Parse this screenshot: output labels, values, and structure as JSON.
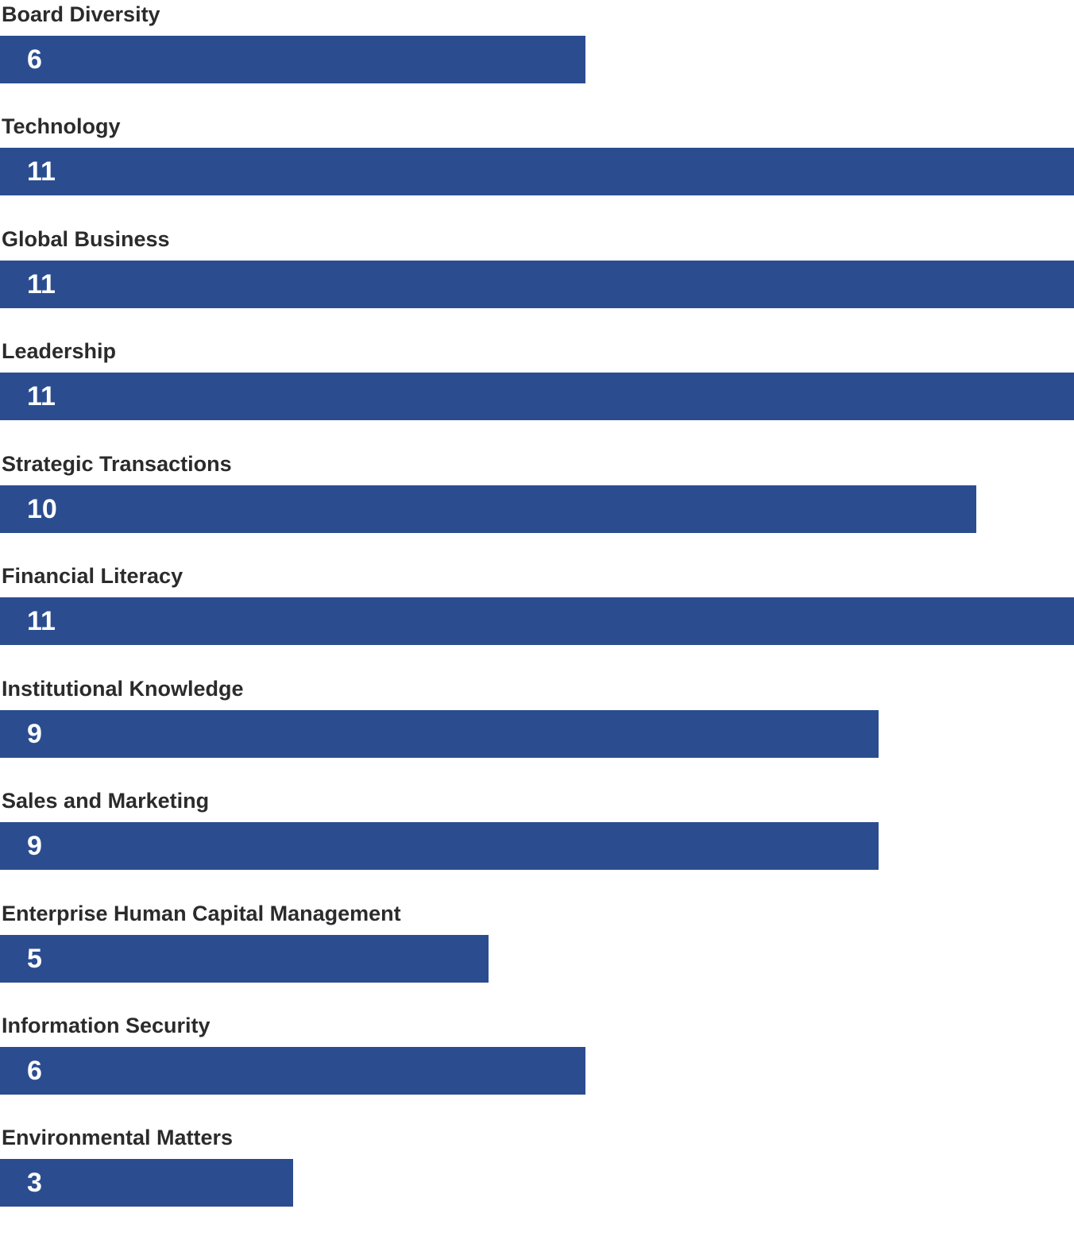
{
  "chart_data": {
    "type": "bar",
    "orientation": "horizontal",
    "categories": [
      "Board Diversity",
      "Technology",
      "Global Business",
      "Leadership",
      "Strategic Transactions",
      "Financial Literacy",
      "Institutional Knowledge",
      "Sales and Marketing",
      "Enterprise Human Capital Management",
      "Information Security",
      "Environmental Matters"
    ],
    "values": [
      6,
      11,
      11,
      11,
      10,
      11,
      9,
      9,
      5,
      6,
      3
    ],
    "xlim": [
      0,
      11
    ],
    "grid": false,
    "legend": false,
    "value_labels_inside_bars": true,
    "colors": {
      "bar": "#2b4d90",
      "category_label": "#2b2b2b",
      "value_label": "#ffffff",
      "background": "#ffffff"
    }
  }
}
